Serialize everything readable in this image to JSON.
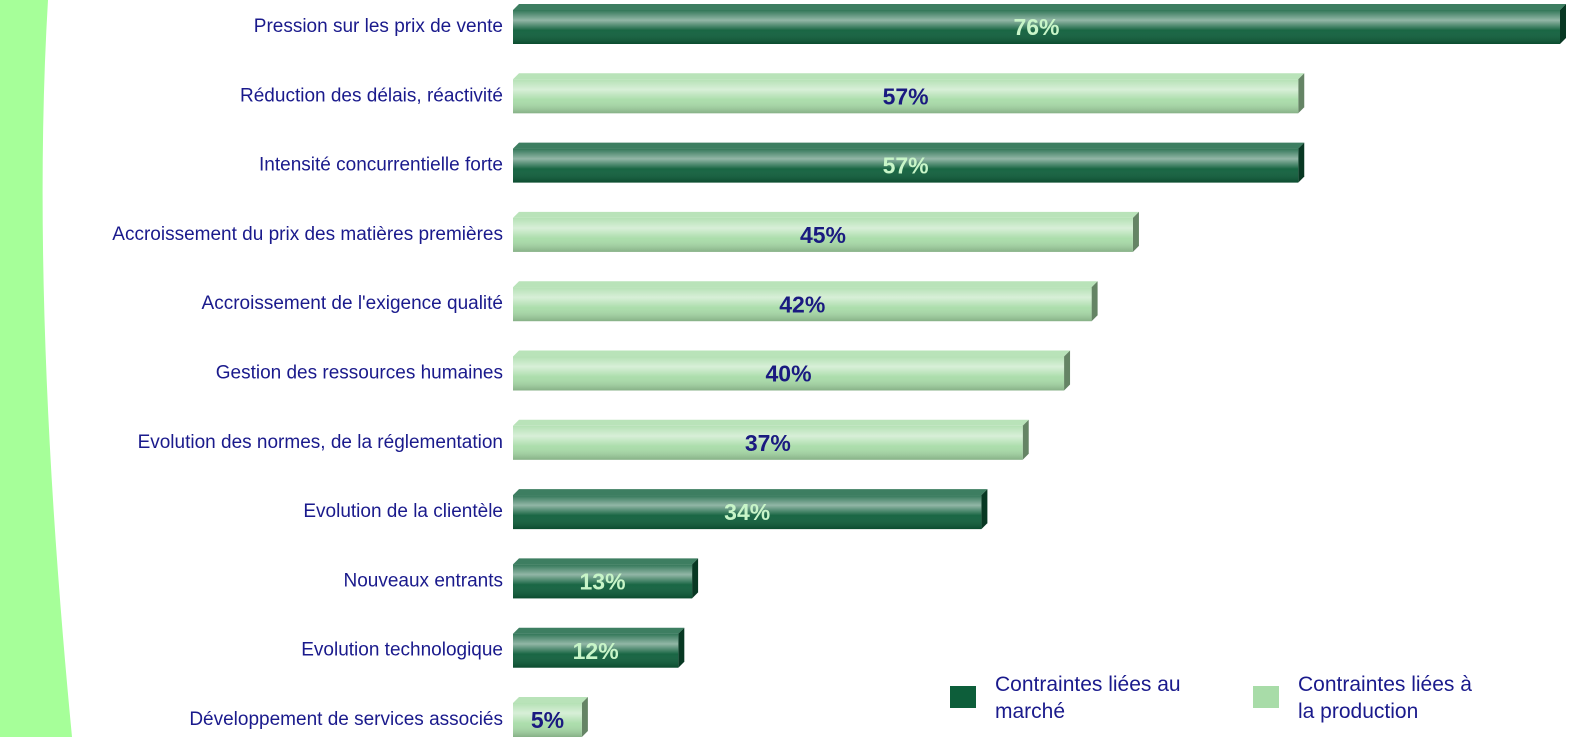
{
  "chart_data": {
    "type": "bar",
    "orientation": "horizontal",
    "categories": [
      "Pression sur les prix de vente",
      "Réduction des délais, réactivité",
      "Intensité concurrentielle forte",
      "Accroissement du prix des matières premières",
      "Accroissement de l'exigence qualité",
      "Gestion des ressources humaines",
      "Evolution des normes, de la réglementation",
      "Evolution de la clientèle",
      "Nouveaux entrants",
      "Evolution technologique",
      "Développement de services associés"
    ],
    "series": [
      {
        "name": "Contraintes liées au marché",
        "color": "#0d5e3a",
        "values": [
          76,
          null,
          57,
          null,
          null,
          null,
          null,
          34,
          13,
          12,
          null
        ],
        "value_labels": [
          "76%",
          null,
          "57%",
          null,
          null,
          null,
          null,
          "34%",
          "13%",
          "12%",
          null
        ]
      },
      {
        "name": "Contraintes liées à la production",
        "color": "#a8dca8",
        "values": [
          null,
          57,
          null,
          45,
          42,
          40,
          37,
          null,
          null,
          null,
          5
        ],
        "value_labels": [
          null,
          "57%",
          null,
          "45%",
          "42%",
          "40%",
          "37%",
          null,
          null,
          null,
          "5%"
        ]
      }
    ],
    "legend": "bottom-right"
  }
}
